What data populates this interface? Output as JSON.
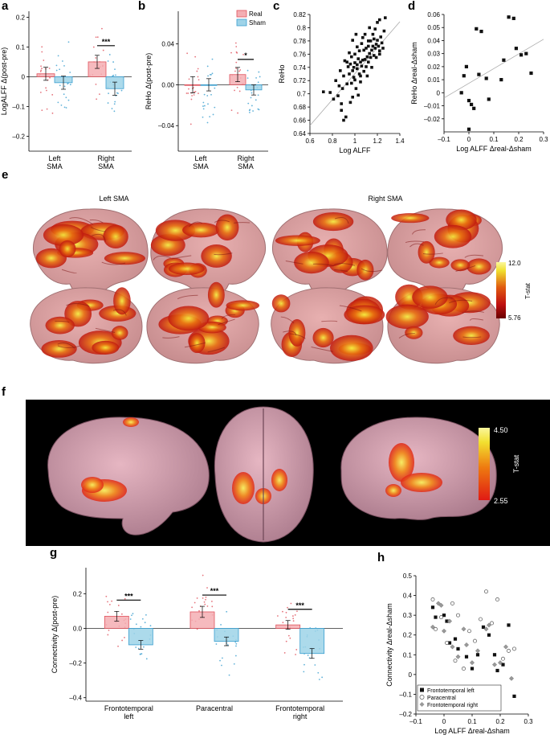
{
  "panels": {
    "a": "a",
    "b": "b",
    "c": "c",
    "d": "d",
    "e": "e",
    "f": "f",
    "g": "g",
    "h": "h"
  },
  "colors": {
    "real": "#f4aeb3",
    "real_edge": "#e0525c",
    "sham": "#9ed3e8",
    "sham_edge": "#3a9fd0"
  },
  "legend": {
    "real": "Real",
    "sham": "Sham"
  },
  "panel_e": {
    "left_title": "Left SMA",
    "right_title": "Right SMA",
    "colorbar_max": "12.0",
    "colorbar_min": "5.76",
    "colorbar_label": "T-stat"
  },
  "panel_f": {
    "colorbar_max": "4.50",
    "colorbar_min": "2.55",
    "colorbar_label": "T-stat"
  },
  "chart_data": [
    {
      "panel": "a",
      "type": "bar",
      "categories": [
        "Left SMA",
        "Right SMA"
      ],
      "category_lines": [
        [
          "Left",
          "SMA"
        ],
        [
          "Right",
          "SMA"
        ]
      ],
      "ylabel": "LogALFF Δ(post-pre)",
      "ylim": [
        -0.25,
        0.22
      ],
      "yticks": [
        -0.2,
        -0.1,
        0,
        0.1,
        0.2
      ],
      "ytick_labels": [
        "–0.2",
        "–0.1",
        "0",
        "0.1",
        "0.2"
      ],
      "series": [
        {
          "name": "Real",
          "values": [
            0.01,
            0.05
          ],
          "errors": [
            0.022,
            0.022
          ]
        },
        {
          "name": "Sham",
          "values": [
            -0.02,
            -0.04
          ],
          "errors": [
            0.022,
            0.022
          ]
        }
      ],
      "significance": [
        {
          "category": "Right SMA",
          "label": "***"
        }
      ]
    },
    {
      "panel": "b",
      "type": "bar",
      "categories": [
        "Left SMA",
        "Right SMA"
      ],
      "category_lines": [
        [
          "Left",
          "SMA"
        ],
        [
          "Right",
          "SMA"
        ]
      ],
      "ylabel": "ReHo Δ(post-pre)",
      "ylim": [
        -0.065,
        0.072
      ],
      "yticks": [
        -0.04,
        0,
        0.04
      ],
      "ytick_labels": [
        "–0.04",
        "0.00",
        "0.04"
      ],
      "series": [
        {
          "name": "Real",
          "values": [
            0.0,
            0.01
          ],
          "errors": [
            0.008,
            0.007
          ]
        },
        {
          "name": "Sham",
          "values": [
            0.0,
            -0.005
          ],
          "errors": [
            0.006,
            0.005
          ]
        }
      ],
      "significance": [
        {
          "category": "Right SMA",
          "label": "*"
        }
      ]
    },
    {
      "panel": "c",
      "type": "scatter",
      "xlabel": "Log ALFF",
      "ylabel": "ReHo",
      "xlim": [
        0.6,
        1.4
      ],
      "ylim": [
        0.64,
        0.82
      ],
      "xticks": [
        0.6,
        0.8,
        1,
        1.2,
        1.4
      ],
      "xtick_labels": [
        "0.6",
        "0.8",
        "1",
        "1.2",
        "1.4"
      ],
      "yticks": [
        0.64,
        0.66,
        0.68,
        0.7,
        0.72,
        0.74,
        0.76,
        0.78,
        0.8,
        0.82
      ],
      "ytick_labels": [
        "0.64",
        "0.66",
        "0.68",
        "0.7",
        "0.72",
        "0.74",
        "0.76",
        "0.78",
        "0.8",
        "0.82"
      ],
      "fit": [
        [
          0.6,
          0.652
        ],
        [
          1.4,
          0.809
        ]
      ],
      "x": [
        0.72,
        0.78,
        0.81,
        0.83,
        0.85,
        0.86,
        0.87,
        0.88,
        0.89,
        0.9,
        0.9,
        0.91,
        0.92,
        0.93,
        0.94,
        0.95,
        0.95,
        0.96,
        0.96,
        0.97,
        0.97,
        0.98,
        0.98,
        0.99,
        0.99,
        1.0,
        1.0,
        1.0,
        1.01,
        1.01,
        1.02,
        1.02,
        1.03,
        1.03,
        1.04,
        1.04,
        1.05,
        1.05,
        1.06,
        1.06,
        1.07,
        1.07,
        1.08,
        1.08,
        1.09,
        1.09,
        1.1,
        1.1,
        1.11,
        1.11,
        1.12,
        1.12,
        1.13,
        1.13,
        1.14,
        1.14,
        1.15,
        1.15,
        1.16,
        1.16,
        1.17,
        1.17,
        1.18,
        1.18,
        1.19,
        1.19,
        1.2,
        1.2,
        1.21,
        1.22,
        1.22,
        1.23,
        1.24,
        1.25,
        1.26,
        1.27,
        0.93,
        0.98,
        1.05,
        1.12,
        1.22,
        0.88,
        1.02
      ],
      "y": [
        0.703,
        0.702,
        0.692,
        0.72,
        0.697,
        0.712,
        0.735,
        0.685,
        0.708,
        0.66,
        0.727,
        0.75,
        0.665,
        0.715,
        0.741,
        0.73,
        0.762,
        0.687,
        0.745,
        0.756,
        0.716,
        0.735,
        0.781,
        0.74,
        0.725,
        0.76,
        0.721,
        0.747,
        0.79,
        0.708,
        0.744,
        0.771,
        0.753,
        0.698,
        0.765,
        0.73,
        0.748,
        0.718,
        0.776,
        0.742,
        0.785,
        0.751,
        0.734,
        0.766,
        0.752,
        0.79,
        0.741,
        0.769,
        0.756,
        0.727,
        0.772,
        0.748,
        0.8,
        0.761,
        0.78,
        0.755,
        0.766,
        0.74,
        0.79,
        0.772,
        0.758,
        0.783,
        0.769,
        0.798,
        0.775,
        0.755,
        0.808,
        0.781,
        0.772,
        0.812,
        0.765,
        0.786,
        0.777,
        0.769,
        0.795,
        0.815,
        0.748,
        0.695,
        0.727,
        0.78,
        0.76,
        0.675,
        0.738
      ]
    },
    {
      "panel": "d",
      "type": "scatter",
      "xlabel": "Log ALFF Δreal-Δsham",
      "ylabel": "ReHo Δreal-Δsham",
      "xlim": [
        -0.1,
        0.3
      ],
      "ylim": [
        -0.03,
        0.06
      ],
      "xticks": [
        -0.1,
        0,
        0.1,
        0.2,
        0.3
      ],
      "xtick_labels": [
        "–0.1",
        "0",
        "0.1",
        "0.2",
        "0.3"
      ],
      "yticks": [
        -0.02,
        -0.01,
        0,
        0.01,
        0.02,
        0.03,
        0.04,
        0.05,
        0.06
      ],
      "ytick_labels": [
        "–0.02",
        "–0.01",
        "0",
        "0.01",
        "0.02",
        "0.03",
        "0.04",
        "0.05",
        "0.06"
      ],
      "fit": [
        [
          -0.1,
          -0.004
        ],
        [
          0.3,
          0.041
        ]
      ],
      "x": [
        -0.03,
        -0.02,
        0.0,
        0.01,
        0.02,
        0.03,
        0.05,
        0.07,
        0.08,
        0.13,
        0.14,
        0.16,
        0.18,
        0.19,
        0.21,
        0.23,
        0.25,
        0.04,
        -0.01,
        0.0
      ],
      "y": [
        0.0,
        0.013,
        -0.006,
        -0.009,
        -0.012,
        0.049,
        0.047,
        0.011,
        -0.005,
        0.01,
        0.025,
        0.058,
        0.057,
        0.034,
        0.029,
        0.03,
        0.015,
        0.014,
        0.02,
        -0.028
      ]
    },
    {
      "panel": "g",
      "type": "bar",
      "categories": [
        "Frontotemporal left",
        "Paracentral",
        "Frontotemporal right"
      ],
      "category_lines": [
        [
          "Frontotemporal",
          "left"
        ],
        [
          "Paracentral"
        ],
        [
          "Frontotemporal",
          "right"
        ]
      ],
      "ylabel": "Connectivity Δ(post-pre)",
      "ylim": [
        -0.42,
        0.35
      ],
      "yticks": [
        -0.4,
        -0.2,
        0,
        0.2
      ],
      "ytick_labels": [
        "–0.4",
        "–0.2",
        "0.0",
        "0.2"
      ],
      "series": [
        {
          "name": "Real",
          "values": [
            0.07,
            0.095,
            0.02
          ],
          "errors": [
            0.028,
            0.032,
            0.025
          ]
        },
        {
          "name": "Sham",
          "values": [
            -0.095,
            -0.075,
            -0.145
          ],
          "errors": [
            0.025,
            0.025,
            0.028
          ]
        }
      ],
      "significance": [
        {
          "category": "Frontotemporal left",
          "label": "***"
        },
        {
          "category": "Paracentral",
          "label": "***"
        },
        {
          "category": "Frontotemporal right",
          "label": "***"
        }
      ]
    },
    {
      "panel": "h",
      "type": "scatter",
      "xlabel": "Log ALFF Δreal-Δsham",
      "ylabel": "Connectivity Δreal-Δsham",
      "xlim": [
        -0.1,
        0.3
      ],
      "ylim": [
        -0.2,
        0.5
      ],
      "xticks": [
        -0.1,
        0,
        0.1,
        0.2,
        0.3
      ],
      "xtick_labels": [
        "–0.1",
        "0",
        "0.1",
        "0.2",
        "0.3"
      ],
      "yticks": [
        -0.2,
        -0.1,
        0,
        0.1,
        0.2,
        0.3,
        0.4,
        0.5
      ],
      "ytick_labels": [
        "–0.2",
        "–0.1",
        "0",
        "0.1",
        "0.2",
        "0.3",
        "0.4",
        "0.5"
      ],
      "series": [
        {
          "name": "Frontotemporal left",
          "marker": "square",
          "x": [
            -0.04,
            -0.03,
            0.0,
            0.01,
            0.02,
            0.04,
            0.05,
            0.08,
            0.1,
            0.12,
            0.14,
            0.16,
            0.18,
            0.19,
            0.21,
            0.23,
            0.25
          ],
          "y": [
            0.34,
            0.29,
            0.3,
            0.27,
            0.16,
            0.18,
            0.13,
            0.09,
            0.03,
            0.1,
            0.24,
            0.2,
            0.1,
            0.02,
            0.05,
            0.25,
            -0.11
          ]
        },
        {
          "name": "Paracentral",
          "marker": "circle",
          "x": [
            -0.04,
            -0.03,
            -0.01,
            0.01,
            0.03,
            0.04,
            0.05,
            0.07,
            0.09,
            0.11,
            0.13,
            0.15,
            0.17,
            0.19,
            0.21,
            0.23,
            0.25
          ],
          "y": [
            0.38,
            0.23,
            0.29,
            0.16,
            0.36,
            0.07,
            0.3,
            0.03,
            0.22,
            0.17,
            0.28,
            0.42,
            0.26,
            0.38,
            0.08,
            0.12,
            0.13
          ]
        },
        {
          "name": "Frontotemporal right",
          "marker": "diamond",
          "x": [
            -0.04,
            -0.02,
            -0.01,
            0.0,
            0.02,
            0.03,
            0.05,
            0.07,
            0.08,
            0.1,
            0.12,
            0.15,
            0.16,
            0.18,
            0.2,
            0.22,
            0.24
          ],
          "y": [
            0.24,
            0.36,
            0.35,
            0.22,
            0.27,
            0.14,
            0.09,
            0.23,
            0.15,
            0.06,
            0.12,
            0.23,
            0.25,
            0.05,
            0.06,
            0.14,
            -0.02
          ]
        }
      ]
    }
  ]
}
